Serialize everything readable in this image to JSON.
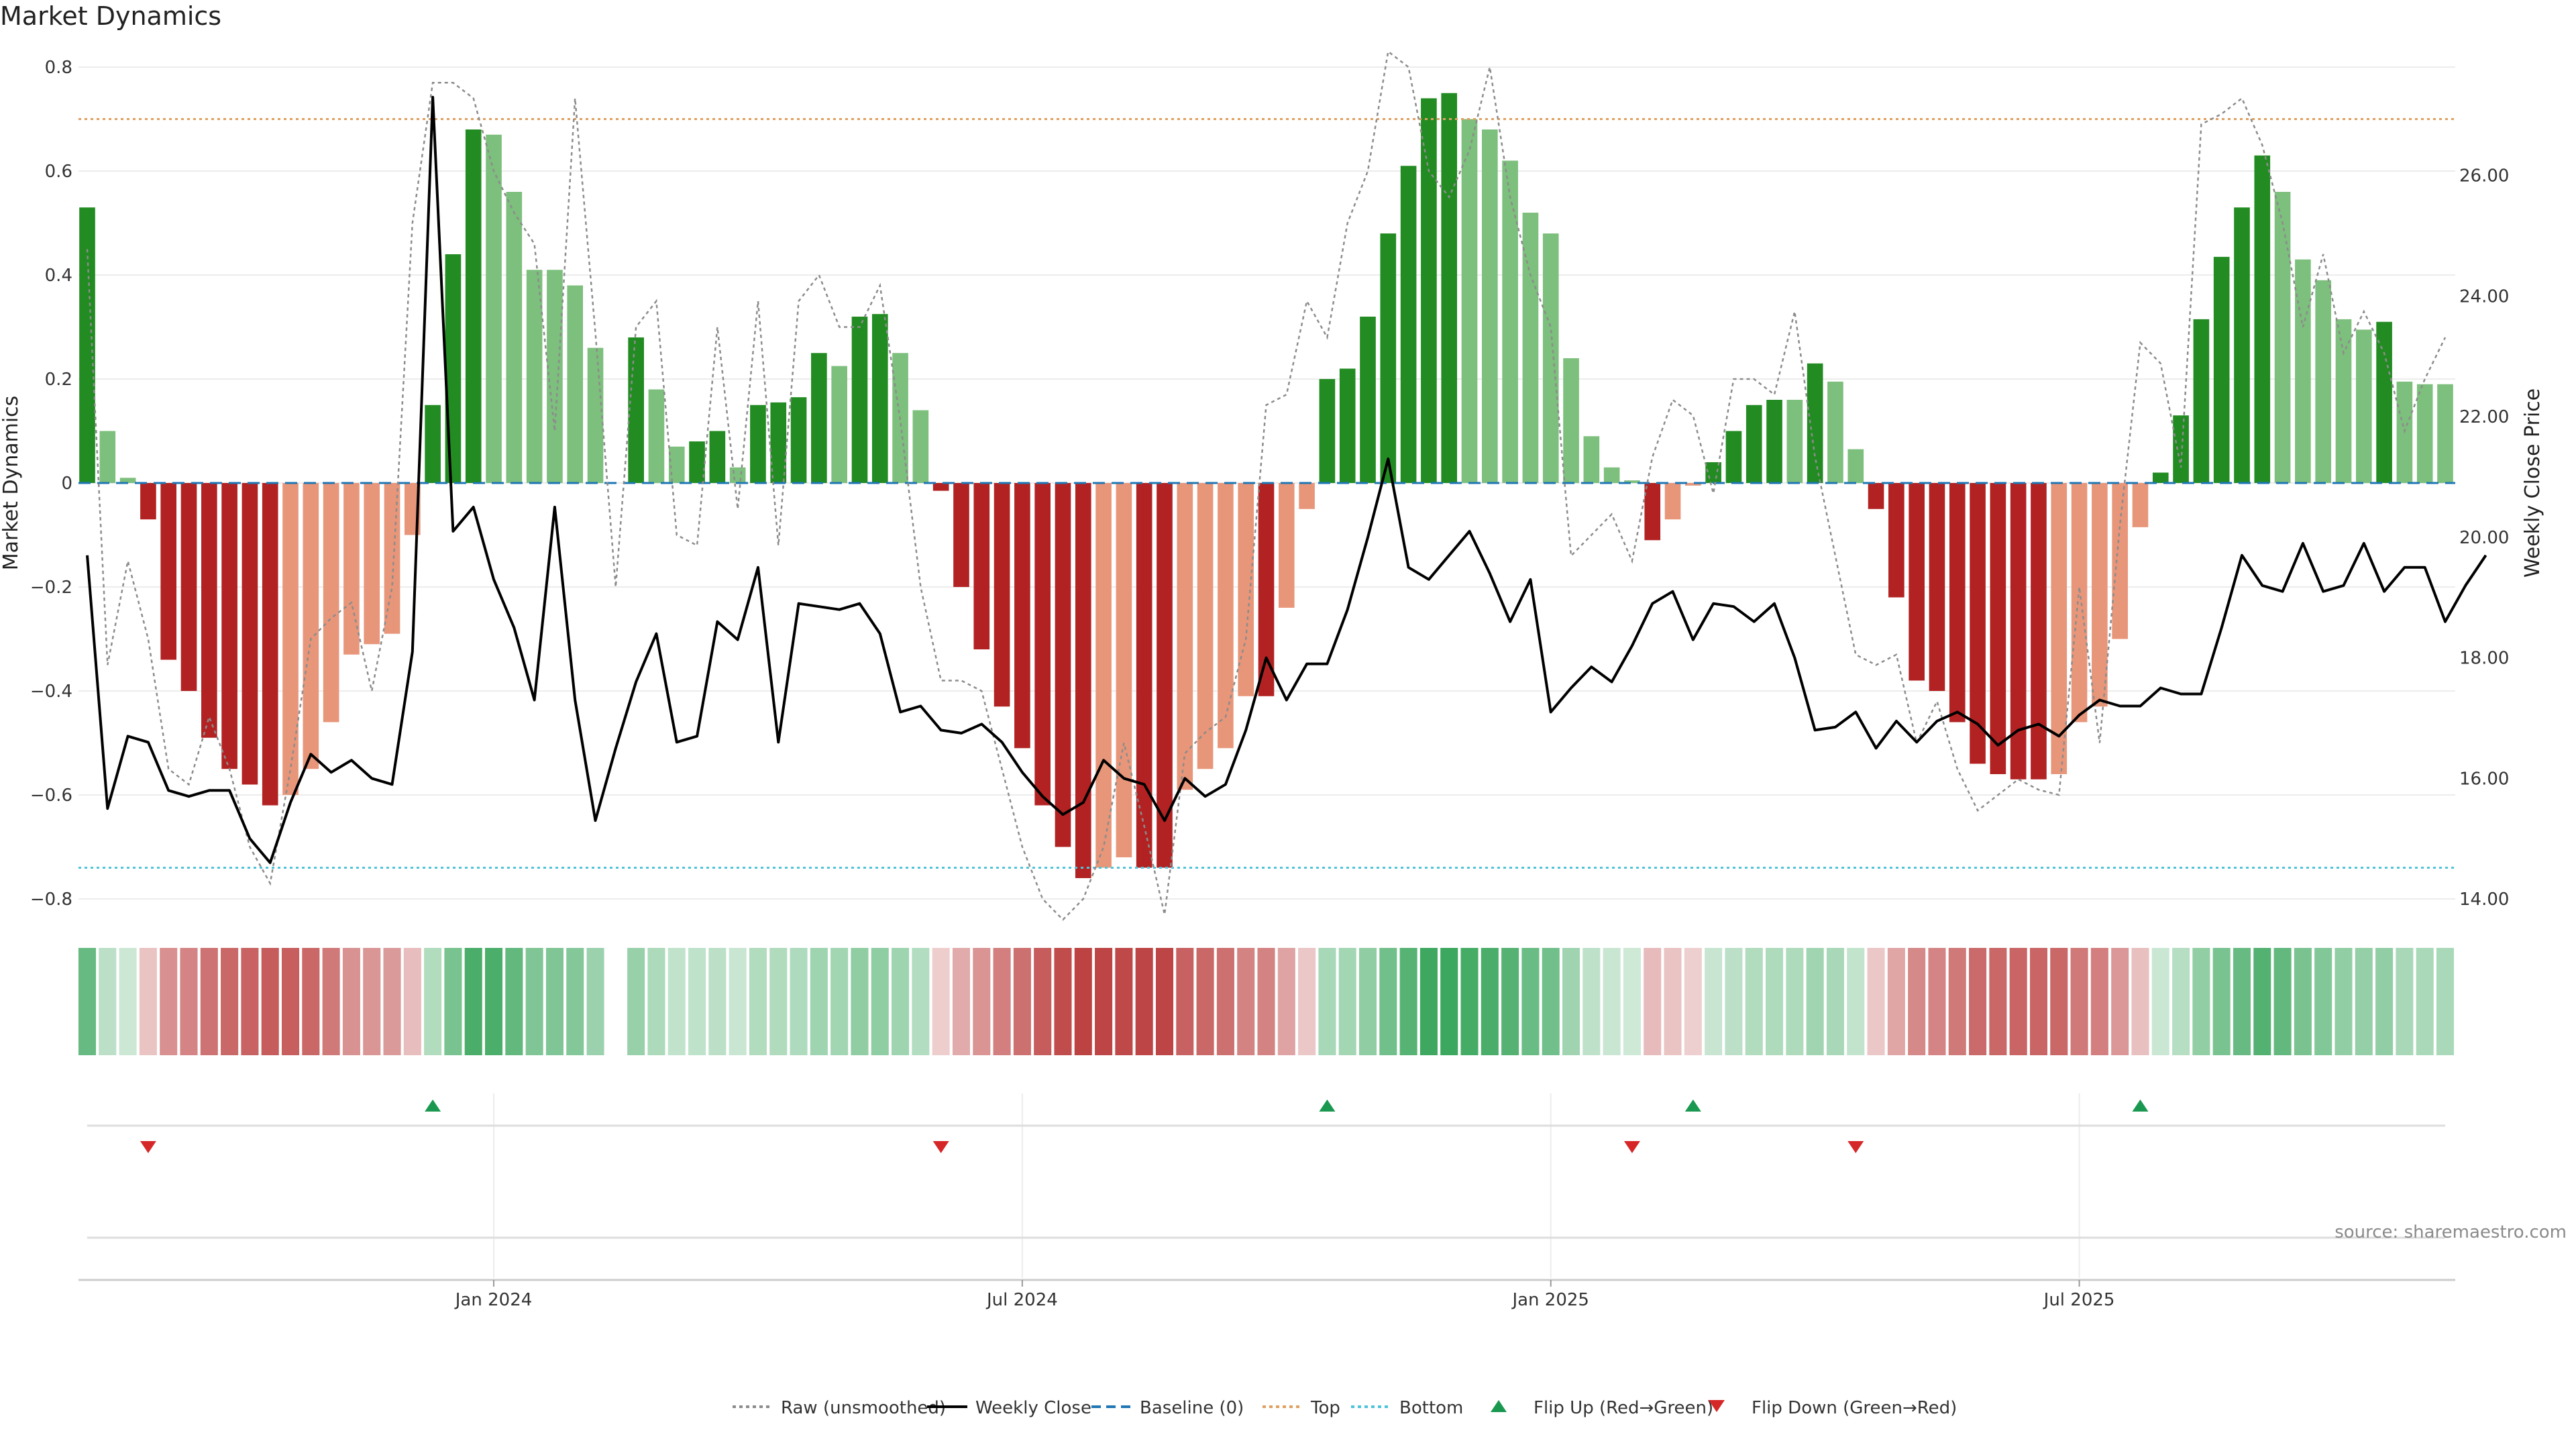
{
  "title": "Market Dynamics",
  "watermark": "source: sharemaestro.com",
  "colors": {
    "up_strong": "#228b22",
    "up_weak": "#7dbf7d",
    "down_strong": "#b22222",
    "down_weak": "#e8967a",
    "price_line": "#000000",
    "raw_line": "#8c8c8c",
    "baseline": "#1f77b4",
    "top": "#e0a060",
    "bottom": "#4fc3d9",
    "flip_up": "#1a9850",
    "flip_down": "#d62728"
  },
  "chart_data": {
    "type": "bar",
    "ylabel_left": "Market Dynamics",
    "ylabel_right": "Weekly Close Price",
    "ylim_left": [
      -0.8,
      0.8
    ],
    "ylim_right": [
      14.0,
      27.8
    ],
    "yticks_left": [
      "0.8",
      "0.6",
      "0.4",
      "0.2",
      "0",
      "−0.2",
      "−0.4",
      "−0.6",
      "−0.8"
    ],
    "yticks_right": [
      "26.00",
      "24.00",
      "22.00",
      "20.00",
      "18.00",
      "16.00",
      "14.00"
    ],
    "xtick_labels": [
      {
        "label": "Jan 2024",
        "index": 20
      },
      {
        "label": "Jul 2024",
        "index": 46
      },
      {
        "label": "Jan 2025",
        "index": 72
      },
      {
        "label": "Jul 2025",
        "index": 98
      }
    ],
    "top_threshold": 0.7,
    "bottom_threshold": -0.74,
    "baseline": 0,
    "grid": true,
    "legend_position": "bottom-center",
    "bars": [
      0.53,
      0.1,
      0.01,
      -0.07,
      -0.34,
      -0.4,
      -0.49,
      -0.55,
      -0.58,
      -0.62,
      -0.6,
      -0.55,
      -0.46,
      -0.33,
      -0.31,
      -0.29,
      -0.1,
      0.15,
      0.44,
      0.68,
      0.67,
      0.56,
      0.41,
      0.41,
      0.38,
      0.26,
      null,
      0.28,
      0.18,
      0.07,
      0.08,
      0.1,
      0.03,
      0.15,
      0.155,
      0.165,
      0.25,
      0.225,
      0.32,
      0.325,
      0.25,
      0.14,
      -0.015,
      -0.2,
      -0.32,
      -0.43,
      -0.51,
      -0.62,
      -0.7,
      -0.76,
      -0.74,
      -0.72,
      -0.74,
      -0.74,
      -0.59,
      -0.55,
      -0.51,
      -0.41,
      -0.41,
      -0.24,
      -0.05,
      0.2,
      0.22,
      0.32,
      0.48,
      0.61,
      0.74,
      0.75,
      0.7,
      0.68,
      0.62,
      0.52,
      0.48,
      0.24,
      0.09,
      0.03,
      0.005,
      -0.11,
      -0.07,
      -0.005,
      0.04,
      0.1,
      0.15,
      0.16,
      0.16,
      0.23,
      0.195,
      0.065,
      -0.05,
      -0.22,
      -0.38,
      -0.4,
      -0.46,
      -0.54,
      -0.56,
      -0.57,
      -0.57,
      -0.56,
      -0.46,
      -0.43,
      -0.3,
      -0.085,
      0.02,
      0.13,
      0.315,
      0.435,
      0.53,
      0.63,
      0.56,
      0.43,
      0.39,
      0.315,
      0.295,
      0.31,
      0.195,
      0.19,
      0.19
    ],
    "bar_styles": [
      "S",
      "W",
      "W",
      "S",
      "S",
      "S",
      "S",
      "S",
      "S",
      "S",
      "W",
      "W",
      "W",
      "W",
      "W",
      "W",
      "W",
      "S",
      "S",
      "S",
      "W",
      "W",
      "W",
      "W",
      "W",
      "W",
      null,
      "S",
      "W",
      "W",
      "S",
      "S",
      "W",
      "S",
      "S",
      "S",
      "S",
      "W",
      "S",
      "S",
      "W",
      "W",
      "S",
      "S",
      "S",
      "S",
      "S",
      "S",
      "S",
      "S",
      "W",
      "W",
      "S",
      "S",
      "W",
      "W",
      "W",
      "W",
      "S",
      "W",
      "W",
      "S",
      "S",
      "S",
      "S",
      "S",
      "S",
      "S",
      "W",
      "W",
      "W",
      "W",
      "W",
      "W",
      "W",
      "W",
      "W",
      "S",
      "W",
      "W",
      "S",
      "S",
      "S",
      "S",
      "W",
      "S",
      "W",
      "W",
      "S",
      "S",
      "S",
      "S",
      "S",
      "S",
      "S",
      "S",
      "S",
      "W",
      "W",
      "W",
      "W",
      "W",
      "S",
      "S",
      "S",
      "S",
      "S",
      "S",
      "W",
      "W",
      "W",
      "W",
      "W",
      "S",
      "W",
      "W",
      "W"
    ],
    "raw": [
      0.45,
      -0.35,
      -0.15,
      -0.3,
      -0.55,
      -0.58,
      -0.45,
      -0.55,
      -0.7,
      -0.77,
      -0.55,
      -0.3,
      -0.26,
      -0.23,
      -0.4,
      -0.2,
      0.5,
      0.77,
      0.77,
      0.74,
      0.6,
      0.52,
      0.46,
      0.1,
      0.74,
      0.29,
      -0.2,
      0.3,
      0.35,
      -0.1,
      -0.12,
      0.3,
      -0.05,
      0.35,
      -0.12,
      0.35,
      0.4,
      0.3,
      0.3,
      0.38,
      0.12,
      -0.2,
      -0.38,
      -0.38,
      -0.4,
      -0.55,
      -0.7,
      -0.8,
      -0.84,
      -0.8,
      -0.7,
      -0.5,
      -0.66,
      -0.83,
      -0.52,
      -0.48,
      -0.45,
      -0.3,
      0.15,
      0.17,
      0.35,
      0.28,
      0.5,
      0.6,
      0.83,
      0.8,
      0.6,
      0.55,
      0.64,
      0.8,
      0.55,
      0.4,
      0.3,
      -0.14,
      -0.1,
      -0.06,
      -0.15,
      0.05,
      0.16,
      0.13,
      -0.02,
      0.2,
      0.2,
      0.17,
      0.33,
      0.05,
      -0.14,
      -0.33,
      -0.35,
      -0.33,
      -0.5,
      -0.42,
      -0.55,
      -0.63,
      -0.6,
      -0.57,
      -0.59,
      -0.6,
      -0.2,
      -0.5,
      -0.08,
      0.27,
      0.23,
      0.03,
      0.69,
      0.71,
      0.74,
      0.65,
      0.5,
      0.3,
      0.44,
      0.25,
      0.33,
      0.25,
      0.1,
      0.2,
      0.28
    ],
    "price": [
      19.7,
      15.5,
      16.7,
      16.6,
      15.8,
      15.7,
      15.8,
      15.8,
      15.0,
      14.6,
      15.6,
      16.4,
      16.1,
      16.3,
      16.0,
      15.9,
      18.1,
      27.3,
      20.1,
      20.5,
      19.3,
      18.5,
      17.3,
      20.5,
      17.3,
      15.3,
      16.5,
      17.6,
      18.4,
      16.6,
      16.7,
      18.6,
      18.3,
      19.5,
      16.6,
      18.9,
      18.85,
      18.8,
      18.9,
      18.4,
      17.1,
      17.2,
      16.8,
      16.75,
      16.9,
      16.6,
      16.1,
      15.7,
      15.4,
      15.6,
      16.3,
      16.0,
      15.9,
      15.3,
      16.0,
      15.7,
      15.9,
      16.8,
      18.0,
      17.3,
      17.9,
      17.9,
      18.8,
      20.0,
      21.3,
      19.5,
      19.3,
      19.7,
      20.1,
      19.4,
      18.6,
      19.3,
      17.1,
      17.5,
      17.85,
      17.6,
      18.2,
      18.9,
      19.1,
      18.3,
      18.9,
      18.85,
      18.6,
      18.9,
      18.0,
      16.8,
      16.85,
      17.1,
      16.5,
      16.95,
      16.6,
      16.95,
      17.1,
      16.9,
      16.55,
      16.8,
      16.9,
      16.7,
      17.05,
      17.3,
      17.2,
      17.2,
      17.5,
      17.4,
      17.4,
      18.5,
      19.7,
      19.2,
      19.1,
      19.9,
      19.1,
      19.2,
      19.9,
      19.1,
      19.5,
      19.5,
      18.6,
      19.2,
      19.7
    ],
    "heat_strips": [
      0.53,
      0.1,
      0.01,
      -0.07,
      -0.34,
      -0.4,
      -0.49,
      -0.55,
      -0.58,
      -0.62,
      -0.6,
      -0.55,
      -0.46,
      -0.33,
      -0.31,
      -0.29,
      -0.1,
      0.15,
      0.44,
      0.68,
      0.67,
      0.56,
      0.41,
      0.41,
      0.38,
      0.26,
      null,
      0.28,
      0.18,
      0.07,
      0.08,
      0.1,
      0.03,
      0.15,
      0.155,
      0.165,
      0.25,
      0.225,
      0.32,
      0.325,
      0.25,
      0.14,
      -0.015,
      -0.2,
      -0.32,
      -0.43,
      -0.51,
      -0.62,
      -0.7,
      -0.76,
      -0.74,
      -0.72,
      -0.74,
      -0.74,
      -0.59,
      -0.55,
      -0.51,
      -0.41,
      -0.41,
      -0.24,
      -0.05,
      0.2,
      0.22,
      0.32,
      0.48,
      0.61,
      0.74,
      0.75,
      0.7,
      0.68,
      0.62,
      0.52,
      0.48,
      0.24,
      0.09,
      0.03,
      0.005,
      -0.11,
      -0.07,
      -0.005,
      0.04,
      0.1,
      0.15,
      0.16,
      0.16,
      0.23,
      0.195,
      0.065,
      -0.05,
      -0.22,
      -0.38,
      -0.4,
      -0.46,
      -0.54,
      -0.56,
      -0.57,
      -0.57,
      -0.56,
      -0.46,
      -0.43,
      -0.3,
      -0.085,
      0.02,
      0.13,
      0.315,
      0.435,
      0.53,
      0.63,
      0.56,
      0.43,
      0.39,
      0.315,
      0.295,
      0.31,
      0.195,
      0.19,
      0.19
    ],
    "flip_up_indices": [
      17,
      61,
      79,
      101
    ],
    "flip_down_indices": [
      3,
      42,
      76,
      87
    ],
    "legend": [
      {
        "label": "Raw (unsmoothed)",
        "kind": "dotted-line",
        "color": "#8c8c8c"
      },
      {
        "label": "Weekly Close",
        "kind": "solid-line",
        "color": "#000000"
      },
      {
        "label": "Baseline (0)",
        "kind": "dashed-line",
        "color": "#1f77b4"
      },
      {
        "label": "Top",
        "kind": "dotted-line",
        "color": "#e0a060"
      },
      {
        "label": "Bottom",
        "kind": "dotted-line",
        "color": "#4fc3d9"
      },
      {
        "label": "Flip Up (Red→Green)",
        "kind": "triangle-up",
        "color": "#1a9850"
      },
      {
        "label": "Flip Down (Green→Red)",
        "kind": "triangle-down",
        "color": "#d62728"
      }
    ]
  }
}
